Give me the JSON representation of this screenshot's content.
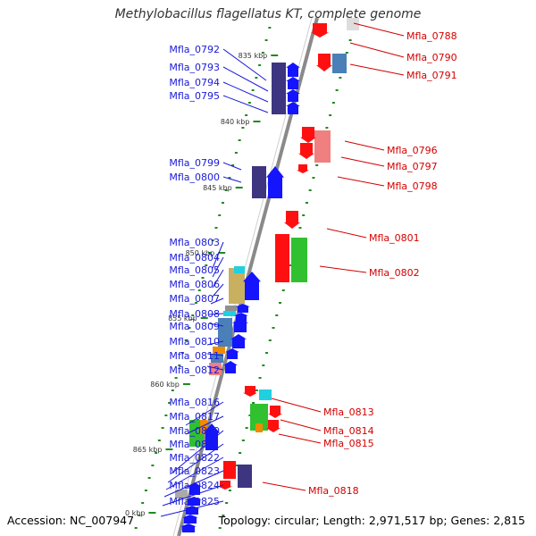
{
  "title": "Methylobacillus flagellatus KT, complete genome",
  "footer": {
    "accession": "Accession: NC_007947",
    "topology": "Topology: circular; Length: 2,971,517 bp; Genes: 2,815"
  },
  "colors": {
    "backbone": "#8a8a8a",
    "tick_green": "#1f8a1f",
    "label_left": "#1a1adb",
    "label_right": "#d40000"
  },
  "kbp_labels": [
    "835 kbp",
    "840 kbp",
    "845 kbp",
    "850 kbp",
    "855 kbp",
    "860 kbp",
    "865 kbp",
    "0 kbp"
  ],
  "genes_left": [
    "Mfla_0792",
    "Mfla_0793",
    "Mfla_0794",
    "Mfla_0795",
    "Mfla_0799",
    "Mfla_0800",
    "Mfla_0803",
    "Mfla_0804",
    "Mfla_0805",
    "Mfla_0806",
    "Mfla_0807",
    "Mfla_0808",
    "Mfla_0809",
    "Mfla_0810",
    "Mfla_0811",
    "Mfla_0812",
    "Mfla_0816",
    "Mfla_0817",
    "Mfla_0820",
    "Mfla_0821",
    "Mfla_0822",
    "Mfla_0823",
    "Mfla_0824",
    "Mfla_0825"
  ],
  "genes_right": [
    "Mfla_0788",
    "Mfla_0790",
    "Mfla_0791",
    "Mfla_0796",
    "Mfla_0797",
    "Mfla_0798",
    "Mfla_0801",
    "Mfla_0802",
    "Mfla_0813",
    "Mfla_0814",
    "Mfla_0815",
    "Mfla_0818"
  ]
}
